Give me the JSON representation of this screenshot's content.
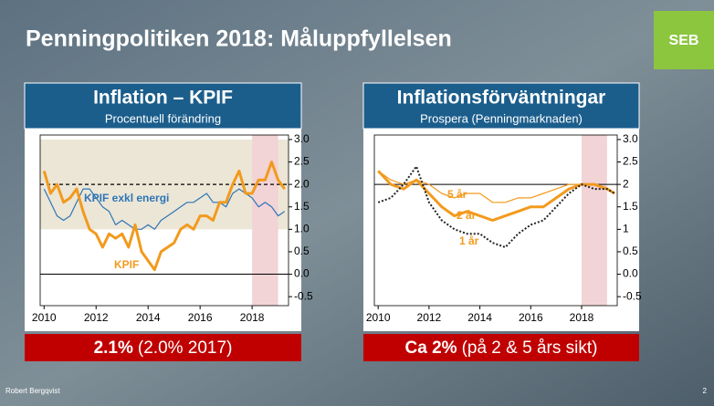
{
  "slide_title": "Penningpolitiken 2018: Måluppfyllelsen",
  "logo": "SEB",
  "footer": {
    "author": "Robert Bergqvist",
    "page": "2"
  },
  "chart_data": [
    {
      "type": "line",
      "title": "Inflation – KPIF",
      "subtitle": "Procentuell förändring",
      "summary": {
        "bold": "2.1%",
        "rest": "(2.0% 2017)"
      },
      "xlim": [
        2009.85,
        2019.4
      ],
      "xticks": [
        2010,
        2012,
        2014,
        2016,
        2018
      ],
      "ylim": [
        -0.7,
        3.1
      ],
      "yticks": [
        {
          "value": 3,
          "label": "3.0"
        },
        2.5,
        {
          "value": 2,
          "label": "2.0"
        },
        1.5,
        {
          "value": 1,
          "label": "1.0"
        },
        0.5,
        {
          "value": 0,
          "label": "0.0"
        },
        -0.5
      ],
      "band": [
        1,
        3
      ],
      "band_color": "#ece6d6",
      "highlight_x": [
        2018,
        2019
      ],
      "highlight_color": "#f2d3d6",
      "reference_lines": [
        {
          "value": 2,
          "style": "dashed"
        },
        {
          "value": 0,
          "style": "solid"
        }
      ],
      "x": [
        2010,
        2010.25,
        2010.5,
        2010.75,
        2011,
        2011.25,
        2011.5,
        2011.75,
        2012,
        2012.25,
        2012.5,
        2012.75,
        2013,
        2013.25,
        2013.5,
        2013.75,
        2014,
        2014.25,
        2014.5,
        2014.75,
        2015,
        2015.25,
        2015.5,
        2015.75,
        2016,
        2016.25,
        2016.5,
        2016.75,
        2017,
        2017.25,
        2017.5,
        2017.75,
        2018,
        2018.25,
        2018.5,
        2018.75,
        2019,
        2019.25
      ],
      "series": [
        {
          "name": "KPIF exkl energi",
          "color": "#2e75b6",
          "width": 1.2,
          "style": "solid",
          "values": [
            1.9,
            1.6,
            1.3,
            1.2,
            1.3,
            1.6,
            1.9,
            1.9,
            1.7,
            1.5,
            1.4,
            1.1,
            1.2,
            1.1,
            1.0,
            1.0,
            1.1,
            1.0,
            1.2,
            1.3,
            1.4,
            1.5,
            1.6,
            1.6,
            1.7,
            1.8,
            1.6,
            1.6,
            1.5,
            1.8,
            1.9,
            1.8,
            1.7,
            1.5,
            1.6,
            1.5,
            1.3,
            1.4
          ]
        },
        {
          "name": "KPIF",
          "color": "#f29a1d",
          "width": 3,
          "style": "solid",
          "values": [
            2.3,
            1.8,
            2.0,
            1.6,
            1.7,
            1.9,
            1.4,
            1.0,
            0.9,
            0.6,
            0.9,
            0.8,
            0.9,
            0.6,
            1.1,
            0.5,
            0.3,
            0.1,
            0.5,
            0.6,
            0.7,
            1.0,
            1.1,
            1.0,
            1.3,
            1.3,
            1.2,
            1.6,
            1.6,
            2.0,
            2.3,
            1.8,
            1.8,
            2.1,
            2.1,
            2.5,
            2.1,
            1.9
          ]
        }
      ]
    },
    {
      "type": "line",
      "title": "Inflationsförväntningar",
      "subtitle": "Prospera (Penningmarknaden)",
      "summary": {
        "bold": "Ca 2%",
        "rest": "(på 2 & 5 års sikt)"
      },
      "xlim": [
        2009.85,
        2019.4
      ],
      "xticks": [
        2010,
        2012,
        2014,
        2016,
        2018
      ],
      "ylim": [
        -0.7,
        3.1
      ],
      "yticks": [
        {
          "value": 3,
          "label": "3.0"
        },
        2.5,
        2,
        1.5,
        1,
        0.5,
        {
          "value": 0,
          "label": "0.0"
        },
        -0.5
      ],
      "highlight_x": [
        2018,
        2019
      ],
      "highlight_color": "#f2d3d6",
      "reference_lines": [
        {
          "value": 2,
          "style": "solid"
        }
      ],
      "x": [
        2010,
        2010.5,
        2011,
        2011.5,
        2012,
        2012.5,
        2013,
        2013.5,
        2014,
        2014.5,
        2015,
        2015.5,
        2016,
        2016.5,
        2017,
        2017.5,
        2018,
        2018.5,
        2019,
        2019.3
      ],
      "series": [
        {
          "name": "5 år",
          "color": "#f29a1d",
          "width": 1.2,
          "style": "solid",
          "values": [
            2.3,
            2.1,
            2.0,
            2.1,
            2.0,
            1.8,
            1.7,
            1.8,
            1.8,
            1.6,
            1.6,
            1.7,
            1.7,
            1.8,
            1.9,
            2.0,
            2.0,
            2.0,
            1.9,
            1.8
          ]
        },
        {
          "name": "2 år",
          "color": "#f29a1d",
          "width": 3,
          "style": "solid",
          "values": [
            2.3,
            2.0,
            1.9,
            2.1,
            1.8,
            1.5,
            1.3,
            1.4,
            1.3,
            1.2,
            1.3,
            1.4,
            1.5,
            1.5,
            1.7,
            1.9,
            2.0,
            2.0,
            1.9,
            1.8
          ]
        },
        {
          "name": "1 år",
          "color": "#222222",
          "width": 2,
          "style": "dotted",
          "values": [
            1.6,
            1.7,
            2.0,
            2.4,
            1.6,
            1.2,
            1.0,
            0.9,
            0.9,
            0.7,
            0.6,
            0.9,
            1.1,
            1.2,
            1.5,
            1.8,
            2.0,
            1.9,
            1.9,
            1.8
          ]
        }
      ]
    }
  ]
}
